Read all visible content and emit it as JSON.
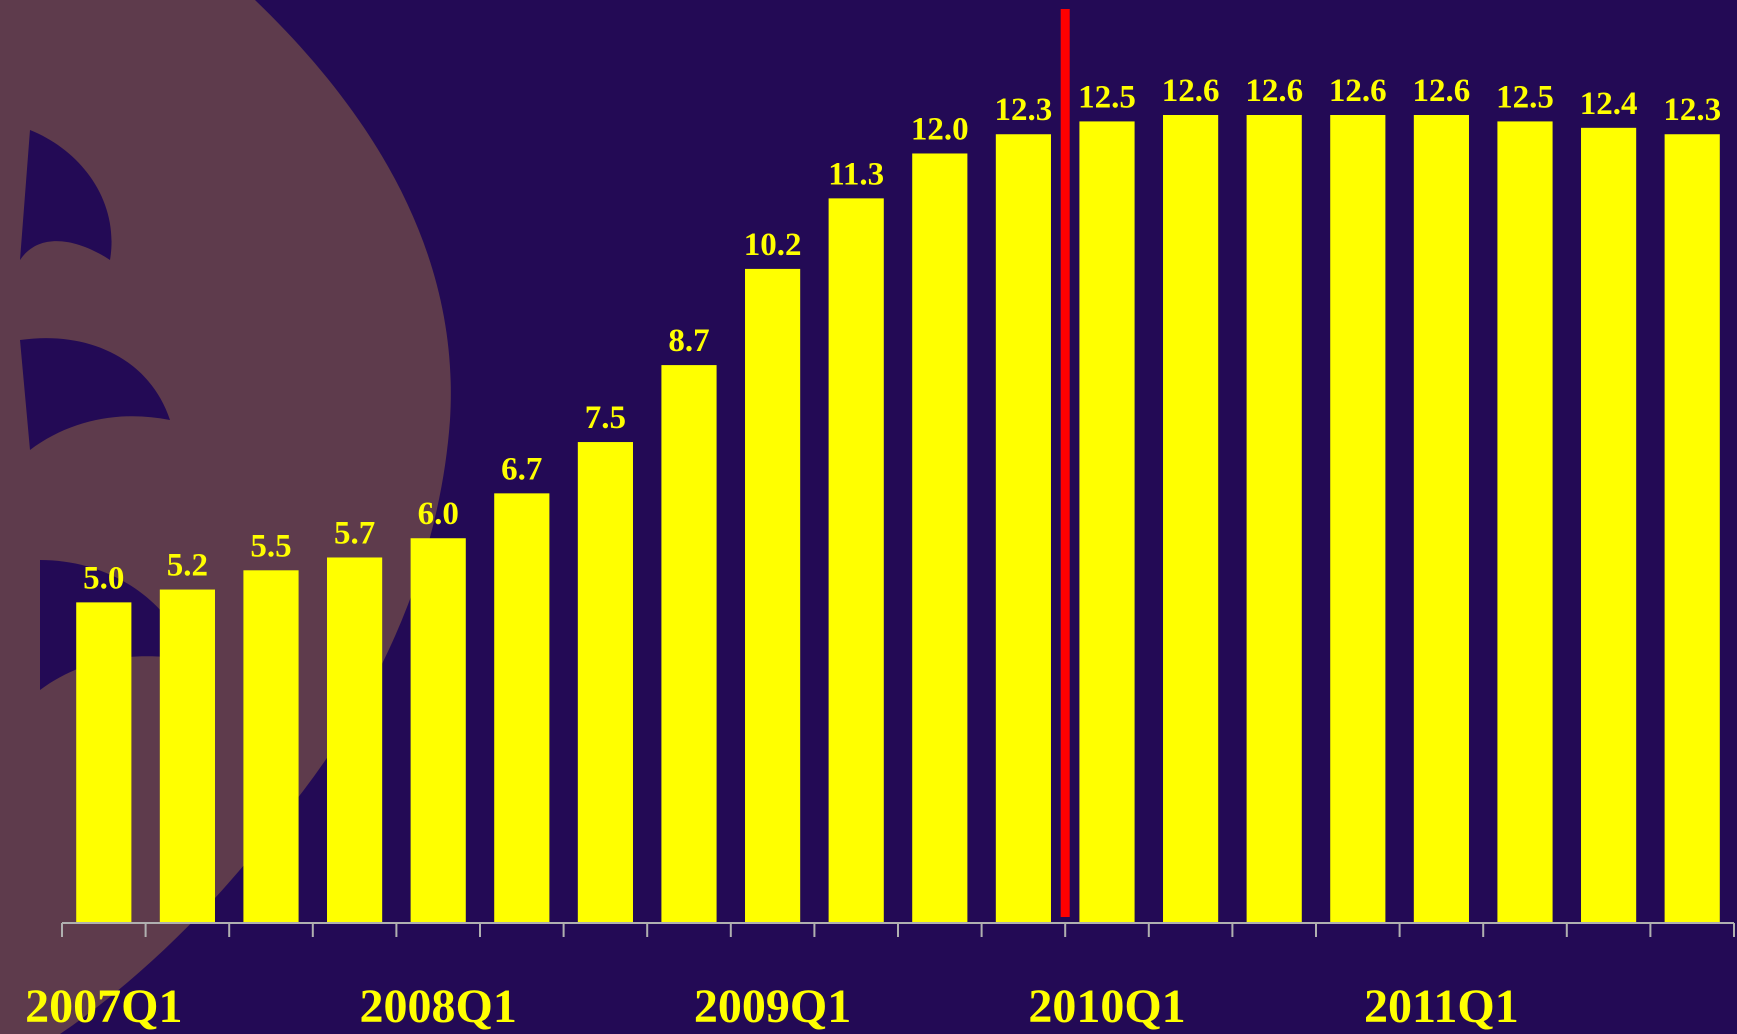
{
  "chart_data": {
    "type": "bar",
    "categories": [
      "2007Q1",
      null,
      null,
      null,
      "2008Q1",
      null,
      null,
      null,
      "2009Q1",
      null,
      null,
      null,
      "2010Q1",
      null,
      null,
      null,
      "2011Q1",
      null,
      null,
      null
    ],
    "values": [
      5.0,
      5.2,
      5.5,
      5.7,
      6.0,
      6.7,
      7.5,
      8.7,
      10.2,
      11.3,
      12.0,
      12.3,
      12.5,
      12.6,
      12.6,
      12.6,
      12.6,
      12.5,
      12.4,
      12.3
    ],
    "value_labels": [
      "5.0",
      "5.2",
      "5.5",
      "5.7",
      "6.0",
      "6.7",
      "7.5",
      "8.7",
      "10.2",
      "11.3",
      "12.0",
      "12.3",
      "12.5",
      "12.6",
      "12.6",
      "12.6",
      "12.6",
      "12.5",
      "12.4",
      "12.3"
    ],
    "color": "#ffff00"
  }
}
